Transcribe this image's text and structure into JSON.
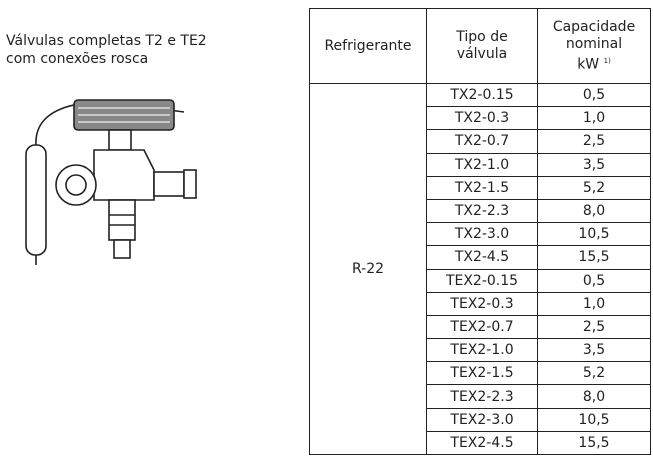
{
  "caption": [
    "Válvulas completas T2 e TE2",
    "com conexões rosca"
  ],
  "table": {
    "header": [
      [
        "Refrigerante"
      ],
      [
        "Tipo de",
        "válvula"
      ],
      [
        "Capacidade",
        "nominal",
        "kW"
      ]
    ],
    "footnote_mark": "1)",
    "refrigerant": "R-22",
    "rows": [
      [
        "TX2-0.15",
        "0,5"
      ],
      [
        "TX2-0.3",
        "1,0"
      ],
      [
        "TX2-0.7",
        "2,5"
      ],
      [
        "TX2-1.0",
        "3,5"
      ],
      [
        "TX2-1.5",
        "5,2"
      ],
      [
        "TX2-2.3",
        "8,0"
      ],
      [
        "TX2-3.0",
        "10,5"
      ],
      [
        "TX2-4.5",
        "15,5"
      ],
      [
        "TEX2-0.15",
        "0,5"
      ],
      [
        "TEX2-0.3",
        "1,0"
      ],
      [
        "TEX2-0.7",
        "2,5"
      ],
      [
        "TEX2-1.0",
        "3,5"
      ],
      [
        "TEX2-1.5",
        "5,2"
      ],
      [
        "TEX2-2.3",
        "8,0"
      ],
      [
        "TEX2-3.0",
        "10,5"
      ],
      [
        "TEX2-4.5",
        "15,5"
      ]
    ]
  }
}
